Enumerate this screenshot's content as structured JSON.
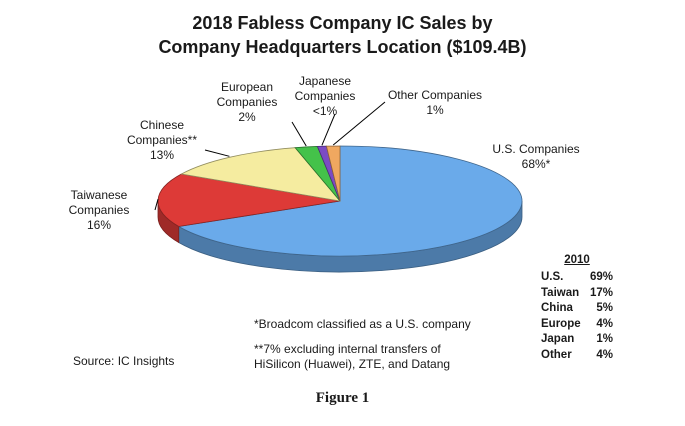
{
  "chart_data": {
    "type": "pie",
    "title": "2018 Fabless Company IC Sales by",
    "subtitle": "Company Headquarters Location ($109.4B)",
    "slices": [
      {
        "label_line1": "U.S. Companies",
        "label_line2": "",
        "value_text": "68%*",
        "value": 68,
        "color": "#6aaaea"
      },
      {
        "label_line1": "Taiwanese",
        "label_line2": "Companies",
        "value_text": "16%",
        "value": 16,
        "color": "#dd3a37"
      },
      {
        "label_line1": "Chinese",
        "label_line2": "Companies**",
        "value_text": "13%",
        "value": 13,
        "color": "#f5eca0"
      },
      {
        "label_line1": "European",
        "label_line2": "Companies",
        "value_text": "2%",
        "value": 2,
        "color": "#44c24a"
      },
      {
        "label_line1": "Japanese",
        "label_line2": "Companies",
        "value_text": "<1%",
        "value": 0.8,
        "color": "#7b4bc4"
      },
      {
        "label_line1": "Other Companies",
        "label_line2": "",
        "value_text": "1%",
        "value": 1.2,
        "color": "#f0a860"
      }
    ]
  },
  "side_table": {
    "year": "2010",
    "rows": [
      {
        "region": "U.S.",
        "pct": "69%"
      },
      {
        "region": "Taiwan",
        "pct": "17%"
      },
      {
        "region": "China",
        "pct": "5%"
      },
      {
        "region": "Europe",
        "pct": "4%"
      },
      {
        "region": "Japan",
        "pct": "1%"
      },
      {
        "region": "Other",
        "pct": "4%"
      }
    ]
  },
  "notes": {
    "note1": "*Broadcom classified as a U.S. company",
    "note2_line1": "**7% excluding internal transfers of",
    "note2_line2": "HiSilicon (Huawei), ZTE, and Datang",
    "source": "Source: IC Insights"
  },
  "caption": "Figure 1"
}
